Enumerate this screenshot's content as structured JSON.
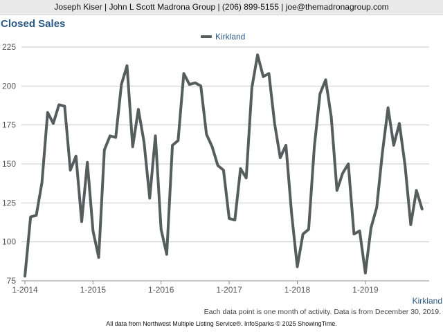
{
  "header": {
    "contact": "Joseph Kiser | John L Scott Madrona Group | (206) 899-5155 | joe@themadronagroup.com"
  },
  "chart_title": "Closed Sales",
  "series_label": "Kirkland",
  "note": "Each data point is one month of activity. Data is from December 30, 2019.",
  "footer": "All data from Northwest Multiple Listing Service®. InfoSparks © 2025 ShowingTime.",
  "colors": {
    "series": "#565e5d",
    "title": "#2b5a86",
    "grid": "#c8c8c8"
  },
  "chart_data": {
    "type": "line",
    "title": "Closed Sales",
    "legend": "top-center",
    "grid": true,
    "ylim": [
      75,
      225
    ],
    "yticks": [
      75,
      100,
      125,
      150,
      175,
      200,
      225
    ],
    "xlim": [
      "2014-01",
      "2019-12"
    ],
    "xticks": [
      "1-2014",
      "1-2015",
      "1-2016",
      "1-2017",
      "1-2018",
      "1-2019"
    ],
    "series": [
      {
        "name": "Kirkland",
        "start": "2014-01",
        "values": [
          78,
          116,
          117,
          138,
          183,
          176,
          188,
          187,
          146,
          155,
          113,
          151,
          107,
          90,
          159,
          168,
          167,
          201,
          213,
          161,
          185,
          164,
          128,
          168,
          108,
          92,
          162,
          165,
          208,
          201,
          202,
          200,
          169,
          161,
          149,
          146,
          115,
          114,
          147,
          141,
          199,
          220,
          206,
          208,
          176,
          154,
          162,
          118,
          84,
          105,
          108,
          161,
          195,
          204,
          180,
          133,
          144,
          150,
          105,
          107,
          80,
          109,
          122,
          157,
          186,
          162,
          176,
          149,
          111,
          133,
          121
        ]
      }
    ]
  }
}
